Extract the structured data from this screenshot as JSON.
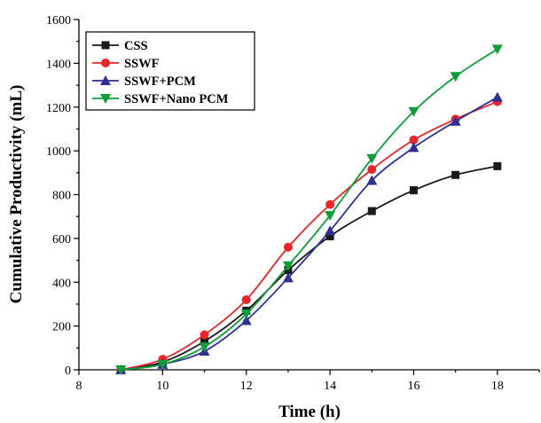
{
  "chart_data": {
    "type": "line",
    "xlabel": "Time (h)",
    "ylabel": "Cumulative Productivity (mL)",
    "xlim": [
      8,
      19
    ],
    "ylim": [
      0,
      1600
    ],
    "x_ticks": [
      "8",
      "10",
      "12",
      "14",
      "16",
      "18"
    ],
    "y_ticks": [
      "0",
      "200",
      "400",
      "600",
      "800",
      "1000",
      "1200",
      "1400",
      "1600"
    ],
    "legend_position": "top-left",
    "x": [
      9,
      10,
      11,
      12,
      13,
      14,
      15,
      16,
      17,
      18
    ],
    "series": [
      {
        "name": "CSS",
        "color": "#1a1a1a",
        "marker": "square",
        "values": [
          0,
          35,
          130,
          270,
          455,
          610,
          725,
          820,
          890,
          930
        ]
      },
      {
        "name": "SSWF",
        "color": "#e8262b",
        "marker": "circle",
        "values": [
          0,
          48,
          160,
          320,
          560,
          755,
          915,
          1050,
          1145,
          1225
        ]
      },
      {
        "name": "SSWF+PCM",
        "color": "#2e3192",
        "marker": "triangle-up",
        "values": [
          0,
          25,
          85,
          225,
          420,
          635,
          865,
          1015,
          1135,
          1245
        ]
      },
      {
        "name": "SSWF+Nano PCM",
        "color": "#0f9d3a",
        "marker": "triangle-down",
        "values": [
          0,
          25,
          105,
          255,
          475,
          705,
          965,
          1180,
          1340,
          1465
        ]
      }
    ]
  }
}
